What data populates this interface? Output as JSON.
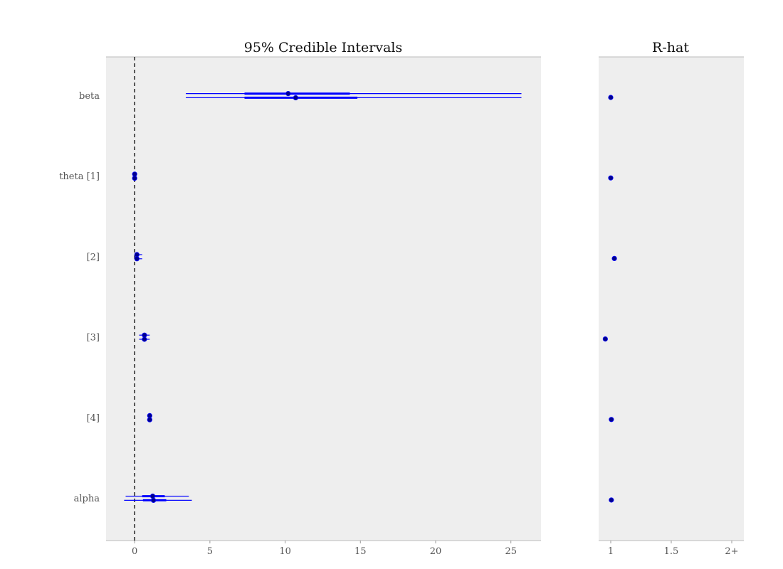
{
  "chart_data": [
    {
      "type": "forest",
      "title": "95% Credible Intervals",
      "xlim": [
        -1.9,
        27.0
      ],
      "xticks": [
        0,
        5,
        10,
        15,
        20,
        25
      ],
      "xtick_labels": [
        "0",
        "5",
        "10",
        "15",
        "20",
        "25"
      ],
      "reference_line": 0,
      "grid": false,
      "row_labels": [
        "beta",
        "theta [1]",
        "[2]",
        "[3]",
        "[4]",
        "alpha"
      ],
      "series": [
        {
          "values": [
            {
              "param": "beta",
              "median": 10.2,
              "q25": 7.3,
              "q75": 14.3,
              "lo": 3.4,
              "hi": 25.7
            },
            {
              "param": "theta [1]",
              "median": 0.0,
              "q25": 0.0,
              "q75": 0.0,
              "lo": 0.0,
              "hi": 0.0
            },
            {
              "param": "[2]",
              "median": 0.15,
              "q25": 0.1,
              "q75": 0.2,
              "lo": 0.05,
              "hi": 0.5
            },
            {
              "param": "[3]",
              "median": 0.65,
              "q25": 0.55,
              "q75": 0.75,
              "lo": 0.3,
              "hi": 1.0
            },
            {
              "param": "[4]",
              "median": 1.0,
              "q25": 1.0,
              "q75": 1.0,
              "lo": 1.0,
              "hi": 1.0
            },
            {
              "param": "alpha",
              "median": 1.2,
              "q25": 0.5,
              "q75": 2.0,
              "lo": -0.6,
              "hi": 3.6
            }
          ]
        },
        {
          "values": [
            {
              "param": "beta",
              "median": 10.7,
              "q25": 7.3,
              "q75": 14.8,
              "lo": 3.4,
              "hi": 25.7
            },
            {
              "param": "theta [1]",
              "median": 0.0,
              "q25": 0.0,
              "q75": 0.0,
              "lo": 0.0,
              "hi": 0.0
            },
            {
              "param": "[2]",
              "median": 0.15,
              "q25": 0.1,
              "q75": 0.2,
              "lo": 0.05,
              "hi": 0.5
            },
            {
              "param": "[3]",
              "median": 0.65,
              "q25": 0.55,
              "q75": 0.75,
              "lo": 0.3,
              "hi": 1.0
            },
            {
              "param": "[4]",
              "median": 1.0,
              "q25": 1.0,
              "q75": 1.0,
              "lo": 1.0,
              "hi": 1.0
            },
            {
              "param": "alpha",
              "median": 1.25,
              "q25": 0.55,
              "q75": 2.1,
              "lo": -0.7,
              "hi": 3.8
            }
          ]
        }
      ],
      "colors": {
        "interval": "#0000ff",
        "point": "#00008b",
        "panel": "#eeeeee",
        "reference": "#000000"
      }
    },
    {
      "type": "scatter",
      "title": "R-hat",
      "xlim": [
        0.9,
        2.1
      ],
      "xticks": [
        1,
        1.5,
        2
      ],
      "xtick_labels": [
        "1",
        "1.5",
        "2+"
      ],
      "values": [
        {
          "param": "beta",
          "value": 1.0
        },
        {
          "param": "theta [1]",
          "value": 1.0
        },
        {
          "param": "[2]",
          "value": 1.03
        },
        {
          "param": "[3]",
          "value": 0.955
        },
        {
          "param": "[4]",
          "value": 1.005
        },
        {
          "param": "alpha",
          "value": 1.005
        }
      ],
      "colors": {
        "point": "#00008b",
        "panel": "#eeeeee"
      }
    }
  ]
}
